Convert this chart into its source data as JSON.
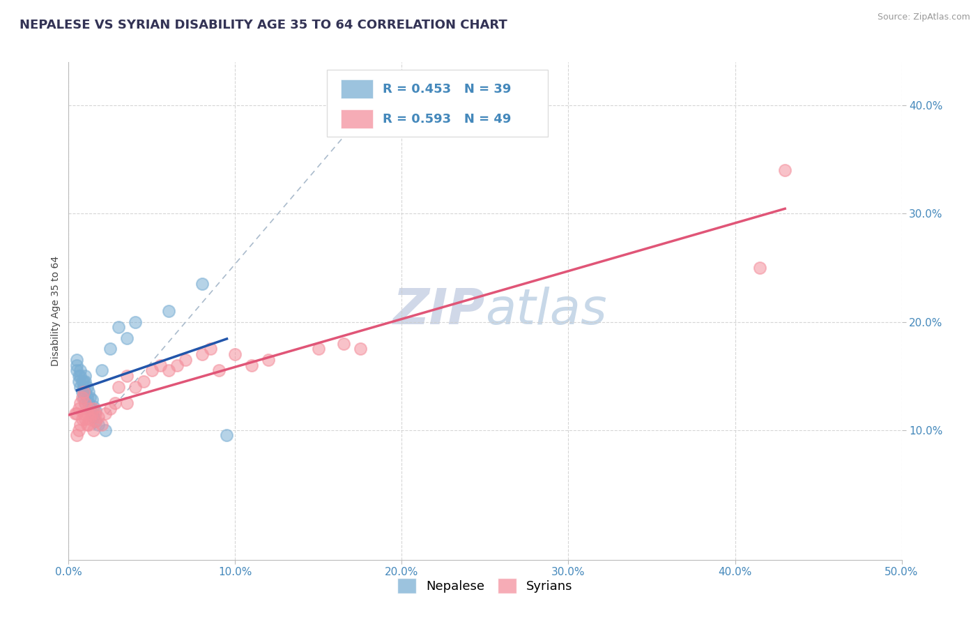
{
  "title": "NEPALESE VS SYRIAN DISABILITY AGE 35 TO 64 CORRELATION CHART",
  "source_text": "Source: ZipAtlas.com",
  "ylabel": "Disability Age 35 to 64",
  "xlim": [
    0.0,
    0.5
  ],
  "ylim": [
    -0.02,
    0.44
  ],
  "xtick_labels": [
    "0.0%",
    "10.0%",
    "20.0%",
    "30.0%",
    "40.0%",
    "50.0%"
  ],
  "xtick_vals": [
    0.0,
    0.1,
    0.2,
    0.3,
    0.4,
    0.5
  ],
  "ytick_labels": [
    "10.0%",
    "20.0%",
    "30.0%",
    "40.0%"
  ],
  "ytick_vals": [
    0.1,
    0.2,
    0.3,
    0.4
  ],
  "R_nepalese": 0.453,
  "N_nepalese": 39,
  "R_syrian": 0.593,
  "N_syrian": 49,
  "nepalese_color": "#7BAFD4",
  "syrian_color": "#F4919E",
  "nepalese_line_color": "#2255AA",
  "syrian_line_color": "#E05577",
  "dashed_line_color": "#AABBCC",
  "watermark_color": "#D0D8E8",
  "background_color": "#FFFFFF",
  "nepalese_x": [
    0.005,
    0.005,
    0.005,
    0.006,
    0.006,
    0.007,
    0.007,
    0.007,
    0.008,
    0.008,
    0.009,
    0.009,
    0.009,
    0.01,
    0.01,
    0.01,
    0.01,
    0.011,
    0.011,
    0.012,
    0.012,
    0.013,
    0.013,
    0.014,
    0.014,
    0.015,
    0.015,
    0.016,
    0.016,
    0.018,
    0.02,
    0.022,
    0.025,
    0.03,
    0.035,
    0.04,
    0.06,
    0.08,
    0.095
  ],
  "nepalese_y": [
    0.155,
    0.16,
    0.165,
    0.145,
    0.15,
    0.14,
    0.15,
    0.155,
    0.135,
    0.145,
    0.13,
    0.14,
    0.145,
    0.125,
    0.135,
    0.145,
    0.15,
    0.13,
    0.14,
    0.125,
    0.135,
    0.12,
    0.13,
    0.115,
    0.128,
    0.112,
    0.122,
    0.108,
    0.118,
    0.105,
    0.155,
    0.1,
    0.175,
    0.195,
    0.185,
    0.2,
    0.21,
    0.235,
    0.095
  ],
  "syrian_x": [
    0.004,
    0.005,
    0.005,
    0.006,
    0.006,
    0.007,
    0.007,
    0.008,
    0.008,
    0.009,
    0.009,
    0.01,
    0.01,
    0.011,
    0.011,
    0.012,
    0.012,
    0.013,
    0.014,
    0.015,
    0.015,
    0.016,
    0.016,
    0.018,
    0.02,
    0.022,
    0.025,
    0.028,
    0.03,
    0.035,
    0.035,
    0.04,
    0.045,
    0.05,
    0.055,
    0.06,
    0.065,
    0.07,
    0.08,
    0.085,
    0.09,
    0.1,
    0.11,
    0.12,
    0.15,
    0.165,
    0.175,
    0.415,
    0.43
  ],
  "syrian_y": [
    0.115,
    0.095,
    0.115,
    0.1,
    0.12,
    0.105,
    0.125,
    0.11,
    0.13,
    0.115,
    0.135,
    0.11,
    0.125,
    0.105,
    0.115,
    0.105,
    0.12,
    0.11,
    0.115,
    0.1,
    0.12,
    0.108,
    0.115,
    0.112,
    0.105,
    0.115,
    0.12,
    0.125,
    0.14,
    0.125,
    0.15,
    0.14,
    0.145,
    0.155,
    0.16,
    0.155,
    0.16,
    0.165,
    0.17,
    0.175,
    0.155,
    0.17,
    0.16,
    0.165,
    0.175,
    0.18,
    0.175,
    0.25,
    0.34
  ],
  "title_fontsize": 13,
  "axis_label_fontsize": 10,
  "tick_fontsize": 11,
  "legend_fontsize": 13,
  "watermark_fontsize": 52
}
